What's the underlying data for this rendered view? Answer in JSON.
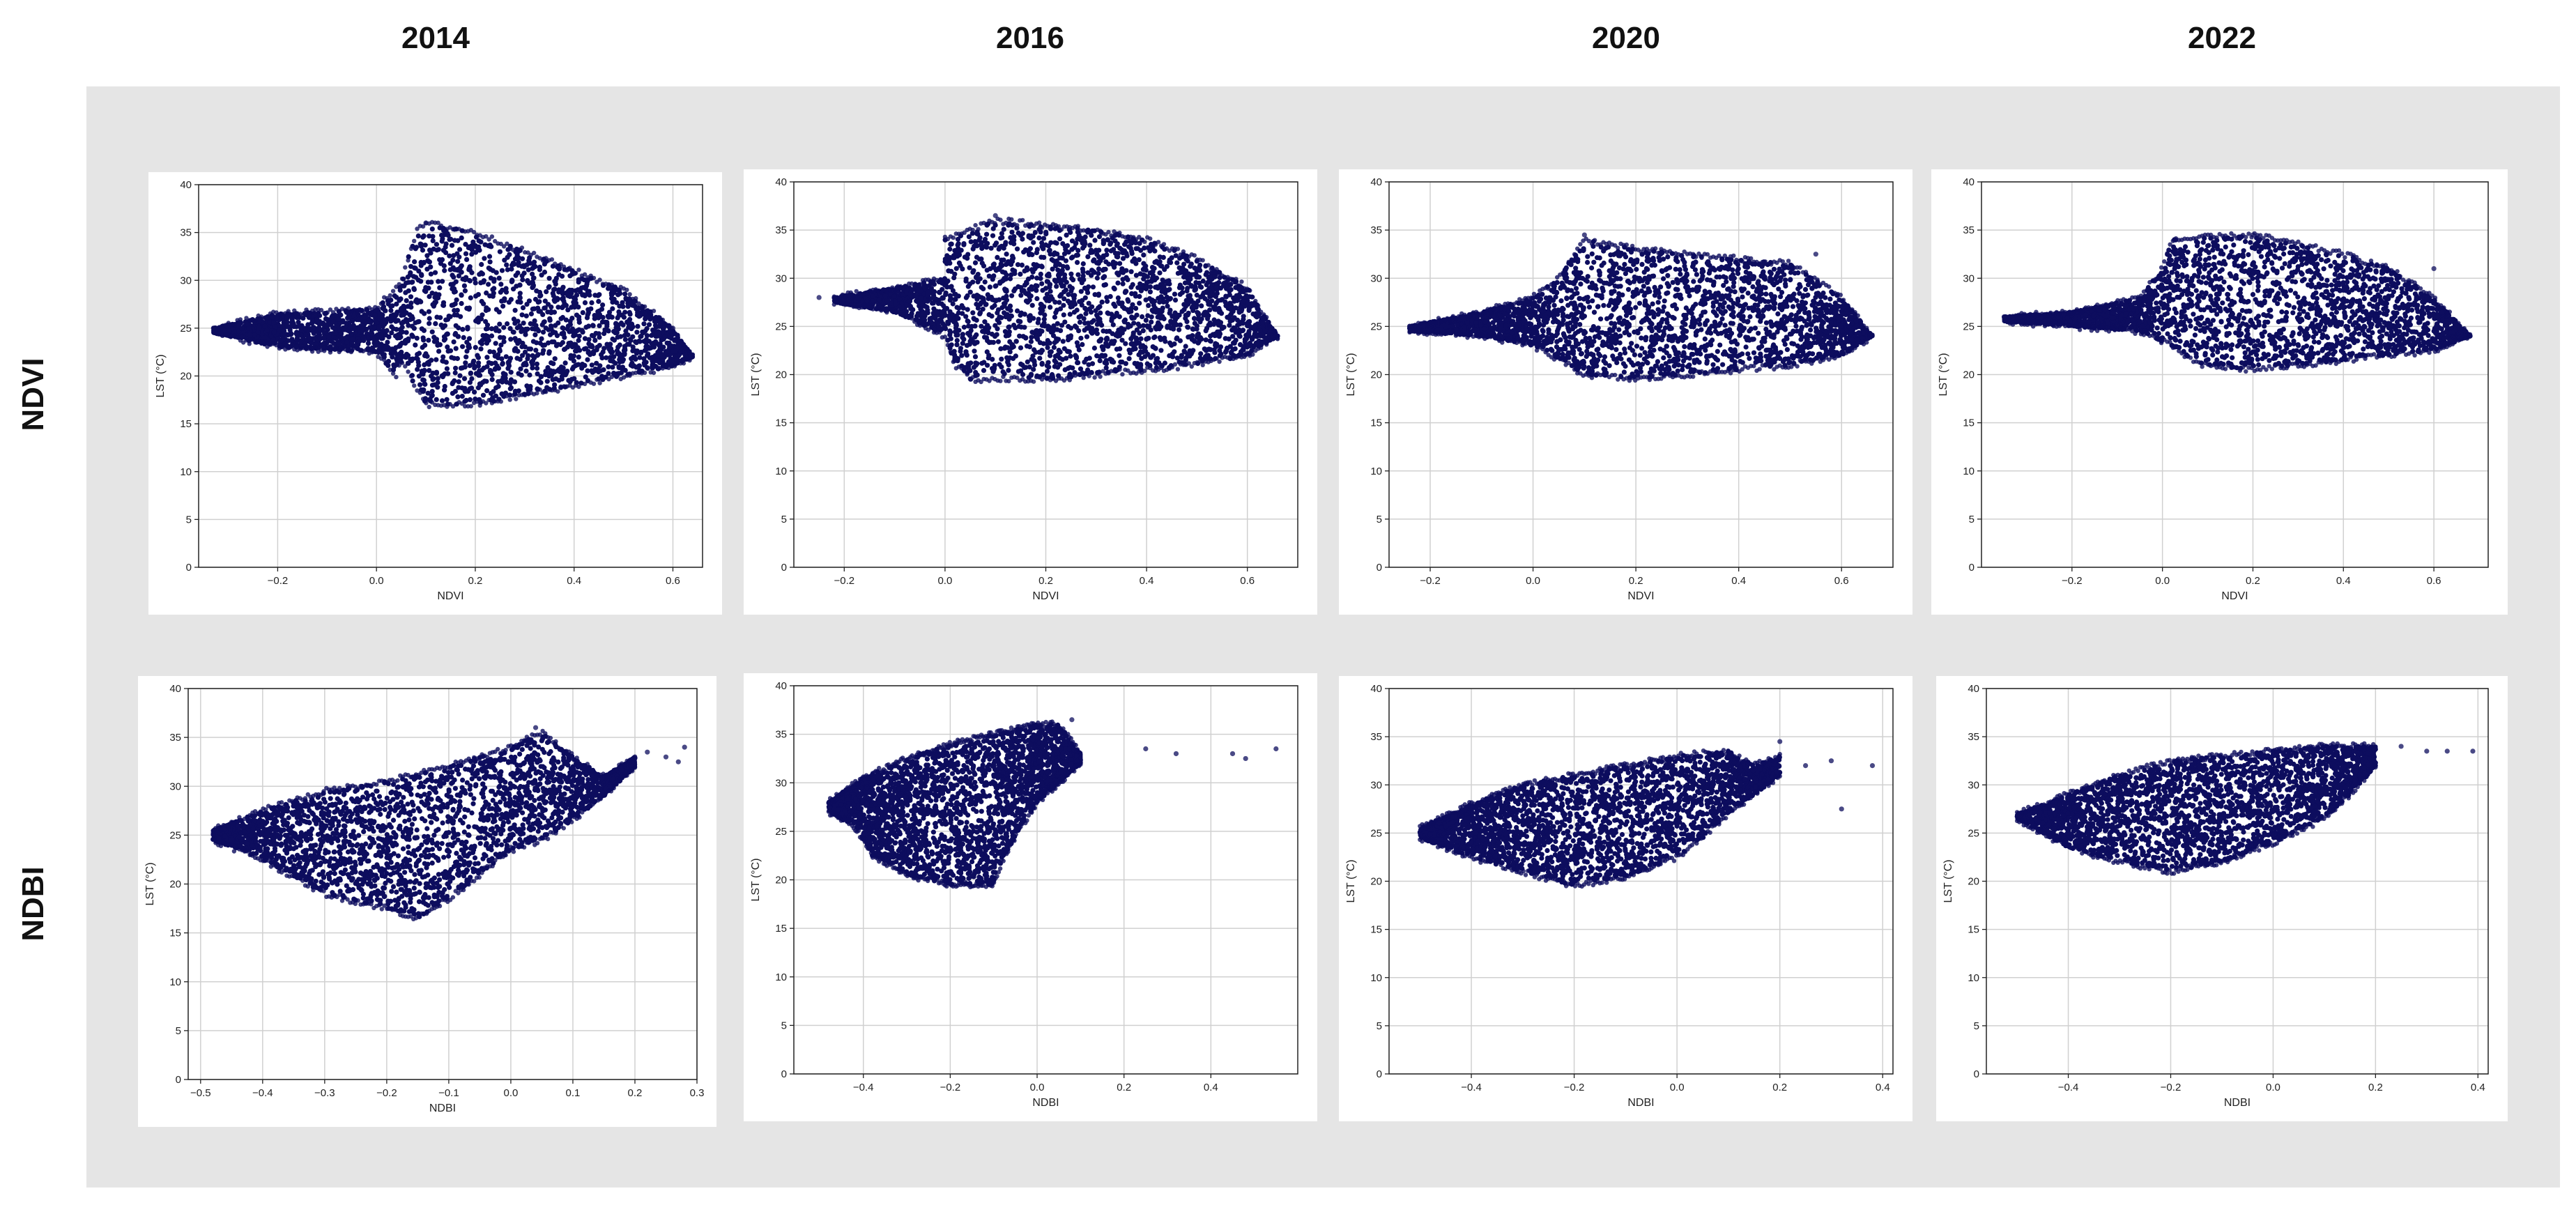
{
  "column_headers": [
    "2014",
    "2016",
    "2020",
    "2022"
  ],
  "row_headers": [
    "NDVI",
    "NDBI"
  ],
  "colors": {
    "points": "#0d0d5e",
    "background_panel": "#e5e5e5",
    "grid": "#d0d0d0"
  },
  "chart_data": [
    {
      "type": "scatter",
      "year": "2014",
      "index": "NDVI",
      "xlabel": "NDVI",
      "ylabel": "LST (°C)",
      "xlim": [
        -0.36,
        0.66
      ],
      "ylim": [
        0,
        40
      ],
      "xticks": [
        -0.2,
        0.0,
        0.2,
        0.4,
        0.6
      ],
      "xtick_labels": [
        "−0.2",
        "0.0",
        "0.2",
        "0.4",
        "0.6"
      ],
      "yticks": [
        0,
        5,
        10,
        15,
        20,
        25,
        30,
        35,
        40
      ],
      "ytick_labels": [
        "0",
        "5",
        "10",
        "15",
        "20",
        "25",
        "30",
        "35",
        "40"
      ],
      "grid": true,
      "cloud": {
        "upper": [
          [
            -0.33,
            25
          ],
          [
            -0.2,
            26.5
          ],
          [
            0.0,
            27
          ],
          [
            0.05,
            30
          ],
          [
            0.08,
            35
          ],
          [
            0.1,
            36
          ],
          [
            0.2,
            35
          ],
          [
            0.3,
            33
          ],
          [
            0.4,
            31
          ],
          [
            0.5,
            29
          ],
          [
            0.6,
            25
          ],
          [
            0.64,
            22
          ]
        ],
        "lower": [
          [
            -0.33,
            24.5
          ],
          [
            -0.2,
            23
          ],
          [
            0.0,
            22.5
          ],
          [
            0.05,
            21.5
          ],
          [
            0.04,
            20
          ],
          [
            0.1,
            17
          ],
          [
            0.2,
            17
          ],
          [
            0.3,
            18
          ],
          [
            0.4,
            19
          ],
          [
            0.5,
            20
          ],
          [
            0.6,
            21
          ],
          [
            0.64,
            22
          ]
        ]
      },
      "outliers": [
        [
          -0.33,
          25
        ],
        [
          0.1,
          36
        ],
        [
          0.6,
          25
        ]
      ]
    },
    {
      "type": "scatter",
      "year": "2016",
      "index": "NDVI",
      "xlabel": "NDVI",
      "ylabel": "LST (°C)",
      "xlim": [
        -0.3,
        0.7
      ],
      "ylim": [
        0,
        40
      ],
      "xticks": [
        -0.2,
        0.0,
        0.2,
        0.4,
        0.6
      ],
      "xtick_labels": [
        "−0.2",
        "0.0",
        "0.2",
        "0.4",
        "0.6"
      ],
      "yticks": [
        0,
        5,
        10,
        15,
        20,
        25,
        30,
        35,
        40
      ],
      "ytick_labels": [
        "0",
        "5",
        "10",
        "15",
        "20",
        "25",
        "30",
        "35",
        "40"
      ],
      "grid": true,
      "cloud": {
        "upper": [
          [
            -0.22,
            28
          ],
          [
            -0.1,
            29
          ],
          [
            0.0,
            30
          ],
          [
            0.0,
            34
          ],
          [
            0.1,
            36
          ],
          [
            0.2,
            35.5
          ],
          [
            0.3,
            35
          ],
          [
            0.4,
            34
          ],
          [
            0.5,
            32
          ],
          [
            0.6,
            29
          ],
          [
            0.66,
            24
          ]
        ],
        "lower": [
          [
            -0.22,
            27.5
          ],
          [
            -0.1,
            26.5
          ],
          [
            0.0,
            24
          ],
          [
            0.02,
            21
          ],
          [
            0.05,
            19.5
          ],
          [
            0.2,
            19.5
          ],
          [
            0.3,
            20
          ],
          [
            0.4,
            20.5
          ],
          [
            0.5,
            21
          ],
          [
            0.6,
            22
          ],
          [
            0.66,
            24
          ]
        ]
      },
      "outliers": [
        [
          -0.25,
          28
        ],
        [
          0.1,
          36.5
        ],
        [
          0.65,
          24
        ]
      ]
    },
    {
      "type": "scatter",
      "year": "2020",
      "index": "NDVI",
      "xlabel": "NDVI",
      "ylabel": "LST (°C)",
      "xlim": [
        -0.28,
        0.7
      ],
      "ylim": [
        0,
        40
      ],
      "xticks": [
        -0.2,
        0.0,
        0.2,
        0.4,
        0.6
      ],
      "xtick_labels": [
        "−0.2",
        "0.0",
        "0.2",
        "0.4",
        "0.6"
      ],
      "yticks": [
        0,
        5,
        10,
        15,
        20,
        25,
        30,
        35,
        40
      ],
      "ytick_labels": [
        "0",
        "5",
        "10",
        "15",
        "20",
        "25",
        "30",
        "35",
        "40"
      ],
      "grid": true,
      "cloud": {
        "upper": [
          [
            -0.24,
            25
          ],
          [
            -0.1,
            26.5
          ],
          [
            0.0,
            28
          ],
          [
            0.05,
            30
          ],
          [
            0.1,
            34
          ],
          [
            0.2,
            33
          ],
          [
            0.3,
            32.5
          ],
          [
            0.4,
            32
          ],
          [
            0.5,
            31.5
          ],
          [
            0.6,
            28
          ],
          [
            0.66,
            24
          ]
        ],
        "lower": [
          [
            -0.24,
            24.5
          ],
          [
            -0.1,
            24
          ],
          [
            0.0,
            23
          ],
          [
            0.05,
            21.5
          ],
          [
            0.1,
            20
          ],
          [
            0.2,
            19.5
          ],
          [
            0.3,
            20
          ],
          [
            0.4,
            20.5
          ],
          [
            0.5,
            21
          ],
          [
            0.6,
            22
          ],
          [
            0.66,
            24
          ]
        ]
      },
      "outliers": [
        [
          -0.24,
          25
        ],
        [
          0.1,
          34.5
        ],
        [
          0.55,
          32.5
        ]
      ]
    },
    {
      "type": "scatter",
      "year": "2022",
      "index": "NDVI",
      "xlabel": "NDVI",
      "ylabel": "LST (°C)",
      "xlim": [
        -0.4,
        0.72
      ],
      "ylim": [
        0,
        40
      ],
      "xticks": [
        -0.2,
        0.0,
        0.2,
        0.4,
        0.6
      ],
      "xtick_labels": [
        "−0.2",
        "0.0",
        "0.2",
        "0.4",
        "0.6"
      ],
      "yticks": [
        0,
        5,
        10,
        15,
        20,
        25,
        30,
        35,
        40
      ],
      "ytick_labels": [
        "0",
        "5",
        "10",
        "15",
        "20",
        "25",
        "30",
        "35",
        "40"
      ],
      "grid": true,
      "cloud": {
        "upper": [
          [
            -0.35,
            26
          ],
          [
            -0.2,
            26.5
          ],
          [
            -0.05,
            28
          ],
          [
            0.0,
            31
          ],
          [
            0.02,
            34
          ],
          [
            0.2,
            34.5
          ],
          [
            0.3,
            33.5
          ],
          [
            0.4,
            32.5
          ],
          [
            0.5,
            31
          ],
          [
            0.6,
            28
          ],
          [
            0.68,
            24
          ]
        ],
        "lower": [
          [
            -0.35,
            25.5
          ],
          [
            -0.2,
            25
          ],
          [
            -0.05,
            24.5
          ],
          [
            0.02,
            23
          ],
          [
            0.08,
            21
          ],
          [
            0.2,
            20.5
          ],
          [
            0.3,
            21
          ],
          [
            0.4,
            21.5
          ],
          [
            0.5,
            22
          ],
          [
            0.6,
            22.5
          ],
          [
            0.68,
            24
          ]
        ]
      },
      "outliers": [
        [
          -0.35,
          26
        ],
        [
          0.2,
          34.5
        ],
        [
          0.6,
          31
        ]
      ]
    },
    {
      "type": "scatter",
      "year": "2014",
      "index": "NDBI",
      "xlabel": "NDBI",
      "ylabel": "LST (°C)",
      "xlim": [
        -0.52,
        0.3
      ],
      "ylim": [
        0,
        40
      ],
      "xticks": [
        -0.5,
        -0.4,
        -0.3,
        -0.2,
        -0.1,
        0.0,
        0.1,
        0.2,
        0.3
      ],
      "xtick_labels": [
        "−0.5",
        "−0.4",
        "−0.3",
        "−0.2",
        "−0.1",
        "0.0",
        "0.1",
        "0.2",
        "0.3"
      ],
      "yticks": [
        0,
        5,
        10,
        15,
        20,
        25,
        30,
        35,
        40
      ],
      "ytick_labels": [
        "0",
        "5",
        "10",
        "15",
        "20",
        "25",
        "30",
        "35",
        "40"
      ],
      "grid": true,
      "cloud": {
        "upper": [
          [
            -0.48,
            25.5
          ],
          [
            -0.4,
            27.5
          ],
          [
            -0.3,
            29.5
          ],
          [
            -0.2,
            30.5
          ],
          [
            -0.1,
            32
          ],
          [
            0.0,
            34
          ],
          [
            0.05,
            35.5
          ],
          [
            0.1,
            33
          ],
          [
            0.15,
            31
          ],
          [
            0.2,
            33
          ]
        ],
        "lower": [
          [
            -0.48,
            24.5
          ],
          [
            -0.4,
            22.5
          ],
          [
            -0.3,
            19
          ],
          [
            -0.2,
            17.5
          ],
          [
            -0.15,
            16.5
          ],
          [
            -0.1,
            18.5
          ],
          [
            -0.05,
            21
          ],
          [
            0.0,
            23.5
          ],
          [
            0.05,
            24.5
          ],
          [
            0.1,
            26.5
          ],
          [
            0.15,
            29
          ],
          [
            0.2,
            32
          ]
        ]
      },
      "outliers": [
        [
          0.22,
          33.5
        ],
        [
          0.25,
          33
        ],
        [
          0.28,
          34
        ],
        [
          0.27,
          32.5
        ],
        [
          0.04,
          36
        ]
      ]
    },
    {
      "type": "scatter",
      "year": "2016",
      "index": "NDBI",
      "xlabel": "NDBI",
      "ylabel": "LST (°C)",
      "xlim": [
        -0.56,
        0.6
      ],
      "ylim": [
        0,
        40
      ],
      "xticks": [
        -0.4,
        -0.2,
        0.0,
        0.2,
        0.4
      ],
      "xtick_labels": [
        "−0.4",
        "−0.2",
        "0.0",
        "0.2",
        "0.4"
      ],
      "yticks": [
        0,
        5,
        10,
        15,
        20,
        25,
        30,
        35,
        40
      ],
      "ytick_labels": [
        "0",
        "5",
        "10",
        "15",
        "20",
        "25",
        "30",
        "35",
        "40"
      ],
      "grid": true,
      "cloud": {
        "upper": [
          [
            -0.48,
            28
          ],
          [
            -0.4,
            30.5
          ],
          [
            -0.3,
            32.5
          ],
          [
            -0.2,
            34
          ],
          [
            -0.1,
            35
          ],
          [
            0.0,
            36
          ],
          [
            0.05,
            36
          ],
          [
            0.1,
            33
          ]
        ],
        "lower": [
          [
            -0.48,
            27
          ],
          [
            -0.42,
            25.5
          ],
          [
            -0.38,
            22.5
          ],
          [
            -0.3,
            20.5
          ],
          [
            -0.2,
            19.5
          ],
          [
            -0.1,
            19.5
          ],
          [
            -0.08,
            22
          ],
          [
            -0.05,
            24.5
          ],
          [
            0.0,
            28
          ],
          [
            0.05,
            30
          ],
          [
            0.1,
            32
          ]
        ]
      },
      "outliers": [
        [
          0.25,
          33.5
        ],
        [
          0.32,
          33
        ],
        [
          0.45,
          33
        ],
        [
          0.48,
          32.5
        ],
        [
          0.55,
          33.5
        ],
        [
          0.08,
          36.5
        ]
      ]
    },
    {
      "type": "scatter",
      "year": "2020",
      "index": "NDBI",
      "xlabel": "NDBI",
      "ylabel": "LST (°C)",
      "xlim": [
        -0.56,
        0.42
      ],
      "ylim": [
        0,
        40
      ],
      "xticks": [
        -0.4,
        -0.2,
        0.0,
        0.2,
        0.4
      ],
      "xtick_labels": [
        "−0.4",
        "−0.2",
        "0.0",
        "0.2",
        "0.4"
      ],
      "yticks": [
        0,
        5,
        10,
        15,
        20,
        25,
        30,
        35,
        40
      ],
      "ytick_labels": [
        "0",
        "5",
        "10",
        "15",
        "20",
        "25",
        "30",
        "35",
        "40"
      ],
      "grid": true,
      "cloud": {
        "upper": [
          [
            -0.5,
            25.5
          ],
          [
            -0.4,
            28
          ],
          [
            -0.3,
            30
          ],
          [
            -0.2,
            31
          ],
          [
            -0.1,
            32
          ],
          [
            0.0,
            33
          ],
          [
            0.1,
            33.5
          ],
          [
            0.15,
            32
          ],
          [
            0.2,
            33
          ]
        ],
        "lower": [
          [
            -0.5,
            24.5
          ],
          [
            -0.4,
            22.5
          ],
          [
            -0.3,
            21
          ],
          [
            -0.2,
            19.5
          ],
          [
            -0.1,
            20.5
          ],
          [
            0.0,
            22.5
          ],
          [
            0.05,
            24.5
          ],
          [
            0.1,
            27
          ],
          [
            0.15,
            29
          ],
          [
            0.2,
            31
          ]
        ]
      },
      "outliers": [
        [
          0.2,
          34.5
        ],
        [
          0.25,
          32
        ],
        [
          0.3,
          32.5
        ],
        [
          0.32,
          27.5
        ],
        [
          0.38,
          32
        ]
      ]
    },
    {
      "type": "scatter",
      "year": "2022",
      "index": "NDBI",
      "xlabel": "NDBI",
      "ylabel": "LST (°C)",
      "xlim": [
        -0.56,
        0.42
      ],
      "ylim": [
        0,
        40
      ],
      "xticks": [
        -0.4,
        -0.2,
        0.0,
        0.2,
        0.4
      ],
      "xtick_labels": [
        "−0.4",
        "−0.2",
        "0.0",
        "0.2",
        "0.4"
      ],
      "yticks": [
        0,
        5,
        10,
        15,
        20,
        25,
        30,
        35,
        40
      ],
      "ytick_labels": [
        "0",
        "5",
        "10",
        "15",
        "20",
        "25",
        "30",
        "35",
        "40"
      ],
      "grid": true,
      "cloud": {
        "upper": [
          [
            -0.5,
            27
          ],
          [
            -0.4,
            29
          ],
          [
            -0.3,
            31
          ],
          [
            -0.2,
            32.5
          ],
          [
            -0.1,
            33
          ],
          [
            0.0,
            33.5
          ],
          [
            0.1,
            34
          ],
          [
            0.2,
            34
          ]
        ],
        "lower": [
          [
            -0.5,
            26.5
          ],
          [
            -0.4,
            23.5
          ],
          [
            -0.3,
            22
          ],
          [
            -0.2,
            21
          ],
          [
            -0.1,
            22
          ],
          [
            0.0,
            24
          ],
          [
            0.1,
            26.5
          ],
          [
            0.15,
            29
          ],
          [
            0.2,
            32
          ]
        ]
      },
      "outliers": [
        [
          0.25,
          34
        ],
        [
          0.3,
          33.5
        ],
        [
          0.34,
          33.5
        ],
        [
          0.39,
          33.5
        ]
      ]
    }
  ]
}
